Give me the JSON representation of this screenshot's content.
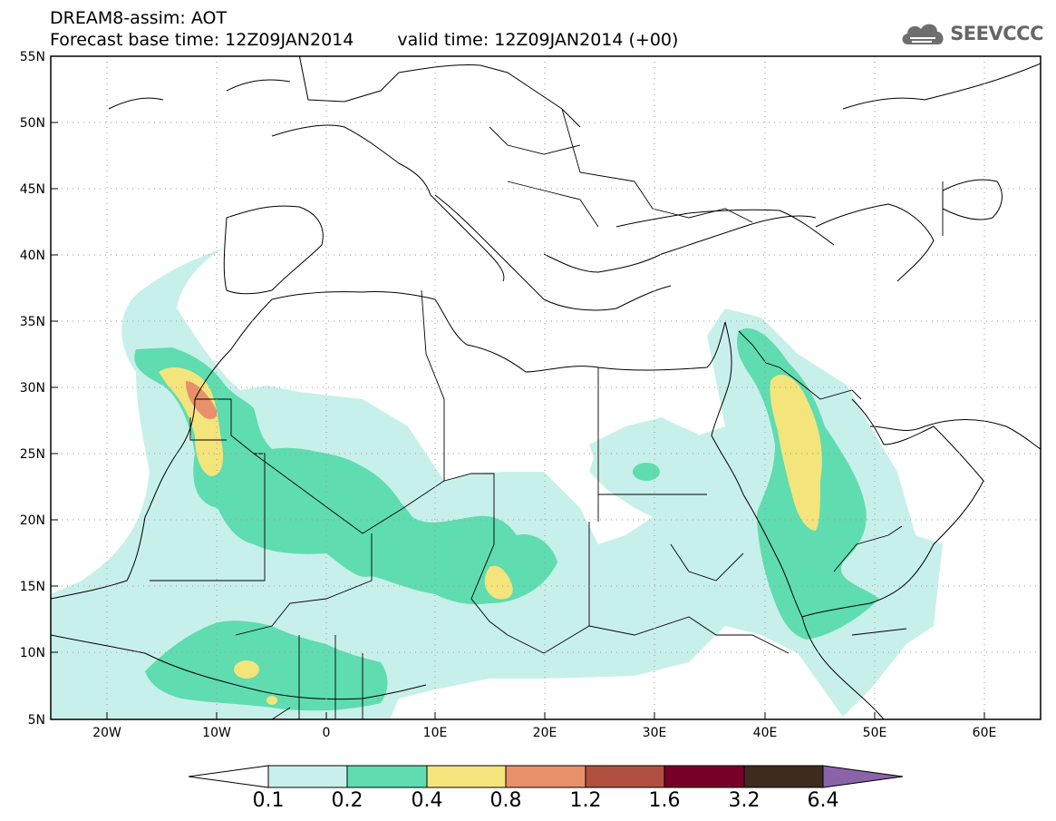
{
  "header": {
    "title": "DREAM8-assim: AOT",
    "base_time_label": "Forecast base time: 12Z09JAN2014",
    "valid_time_label": "valid time: 12Z09JAN2014 (+00)"
  },
  "logo": {
    "text": "SEEVCCC",
    "icon": "cloud-icon"
  },
  "map": {
    "lon_range": [
      -25,
      65
    ],
    "lat_range": [
      5,
      55
    ],
    "lat_labels": [
      "55N",
      "50N",
      "45N",
      "40N",
      "35N",
      "30N",
      "25N",
      "20N",
      "15N",
      "10N",
      "5N"
    ],
    "lon_labels": [
      "20W",
      "10W",
      "0",
      "10E",
      "20E",
      "30E",
      "40E",
      "50E",
      "60E"
    ],
    "field": "AOT",
    "grid": "dotted"
  },
  "colorbar": {
    "levels": [
      "0.1",
      "0.2",
      "0.4",
      "0.8",
      "1.2",
      "1.6",
      "3.2",
      "6.4"
    ],
    "colors": [
      "#c8f0ea",
      "#5fdcb0",
      "#f4e47c",
      "#e8906a",
      "#b05040",
      "#780028",
      "#3e2a1e",
      "#8a64a8"
    ],
    "under_color": "#ffffff"
  }
}
